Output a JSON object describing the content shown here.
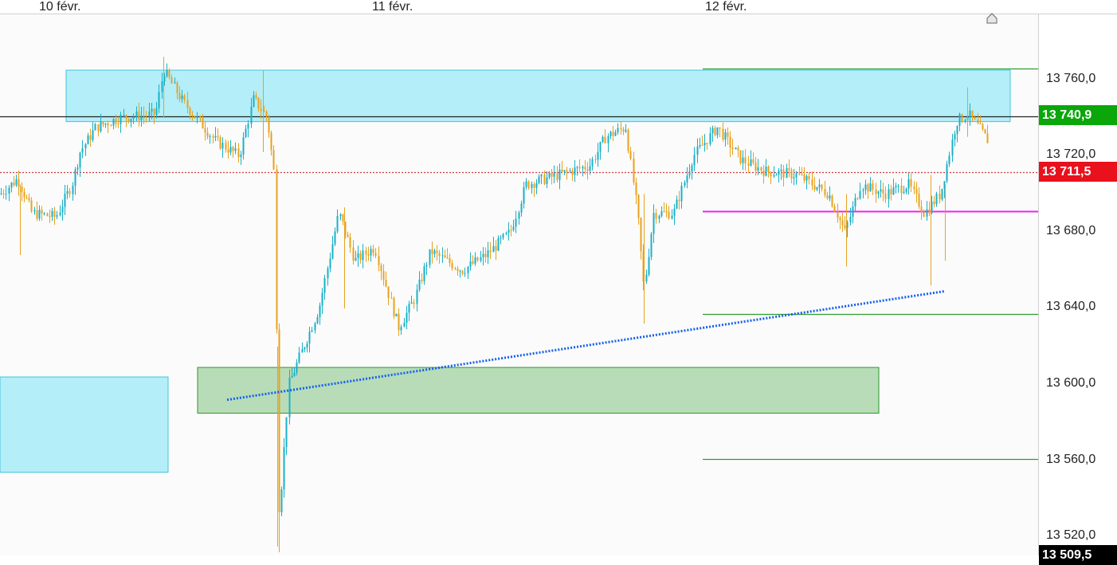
{
  "chart_data": {
    "type": "candlestick",
    "x_labels": [
      "10 févr.",
      "11 févr.",
      "12 févr."
    ],
    "y_ticks": [
      "13 760,0",
      "13 720,0",
      "13 680,0",
      "13 640,0",
      "13 600,0",
      "13 560,0",
      "13 520,0"
    ],
    "y_range": [
      13509.5,
      13790
    ],
    "price_tags": [
      {
        "label": "13 740,9",
        "value": 13740.9,
        "color": "#0aa60a"
      },
      {
        "label": "13 711,5",
        "value": 13711.5,
        "color": "#e8111c"
      },
      {
        "label": "13 509,5",
        "value": 13509.5,
        "color": "#000000"
      }
    ],
    "horizontal_lines": [
      {
        "name": "current-price-line",
        "value": 13740.9,
        "color": "#222222",
        "style": "solid"
      },
      {
        "name": "reference-price-line",
        "value": 13711.5,
        "color": "#d23b3b",
        "style": "dotted"
      },
      {
        "name": "resistance-line",
        "value": 13766,
        "color": "#2e9e2e",
        "style": "solid"
      },
      {
        "name": "pivot-line",
        "value": 13691,
        "color": "#ee22ee",
        "style": "solid"
      },
      {
        "name": "support-line-1",
        "value": 13637,
        "color": "#2e9e2e",
        "style": "solid"
      },
      {
        "name": "support-line-2",
        "value": 13561,
        "color": "#2e9e2e",
        "style": "solid"
      }
    ],
    "zones": [
      {
        "name": "resistance-zone",
        "from": 13738,
        "to": 13765,
        "color": "#b4eef8"
      },
      {
        "name": "left-zone",
        "from": 13554,
        "to": 13604,
        "color": "#b4eef8"
      },
      {
        "name": "demand-zone",
        "from": 13585,
        "to": 13609,
        "color": "#b8dcb8"
      }
    ],
    "trendline": {
      "from": [
        13592
      ],
      "to": [
        13649
      ],
      "color": "#1560f0",
      "style": "dotted"
    },
    "up_color": "#1ab0c8",
    "down_color": "#e8a21e",
    "grid": false,
    "axis_position": "right"
  }
}
